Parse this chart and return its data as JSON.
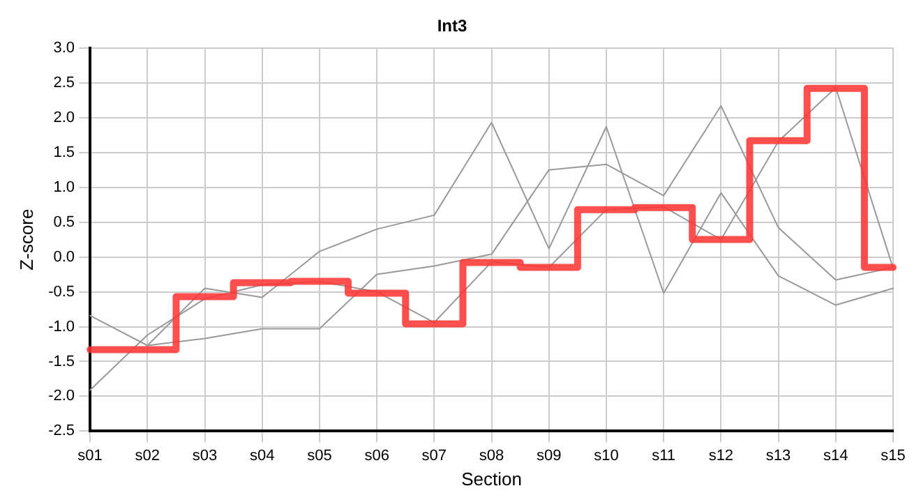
{
  "chart_data": {
    "type": "line",
    "title": "Int3",
    "xlabel": "Section",
    "ylabel": "Z-score",
    "categories": [
      "s01",
      "s02",
      "s03",
      "s04",
      "s05",
      "s06",
      "s07",
      "s08",
      "s09",
      "s10",
      "s11",
      "s12",
      "s13",
      "s14",
      "s15"
    ],
    "series": [
      {
        "color": "#999999",
        "values": [
          -0.84,
          -1.27,
          -0.45,
          -0.58,
          0.08,
          0.4,
          0.6,
          1.93,
          0.12,
          1.87,
          -0.52,
          0.92,
          -0.27,
          -0.69,
          -0.45
        ]
      },
      {
        "color": "#999999",
        "values": [
          -1.91,
          -1.12,
          -0.6,
          -0.4,
          -0.35,
          -0.5,
          -0.94,
          -0.07,
          -0.15,
          0.68,
          0.72,
          0.25,
          1.66,
          2.43,
          -0.16
        ]
      },
      {
        "color": "#999999",
        "values": [
          null,
          -1.27,
          -1.17,
          -1.03,
          -1.03,
          -0.25,
          -0.13,
          0.04,
          1.25,
          1.33,
          0.88,
          2.17,
          0.42,
          -0.33,
          -0.15
        ]
      },
      {
        "type": "step",
        "color": "#ff3333",
        "values": [
          -1.33,
          -1.33,
          -0.57,
          -0.37,
          -0.35,
          -0.52,
          -0.96,
          -0.08,
          -0.15,
          0.68,
          0.71,
          0.25,
          1.67,
          2.42,
          -0.15
        ]
      }
    ],
    "ylim": [
      -2.5,
      3.0
    ],
    "yticks": [
      {
        "value": -2.5,
        "label": "-2.5"
      },
      {
        "value": -2,
        "label": "-2.0"
      },
      {
        "value": -1.5,
        "label": "-1.5"
      },
      {
        "value": -1,
        "label": "-1.0"
      },
      {
        "value": -0.5,
        "label": "-0.5"
      },
      {
        "value": 0,
        "label": "0.0"
      },
      {
        "value": 0.5,
        "label": "0.5"
      },
      {
        "value": 1,
        "label": "1.0"
      },
      {
        "value": 1.5,
        "label": "1.5"
      },
      {
        "value": 2,
        "label": "2.0"
      },
      {
        "value": 2.5,
        "label": "2.5"
      },
      {
        "value": 3,
        "label": "3.0"
      }
    ],
    "grid": true,
    "legend": false,
    "marker": "none",
    "line_style": "solid"
  }
}
